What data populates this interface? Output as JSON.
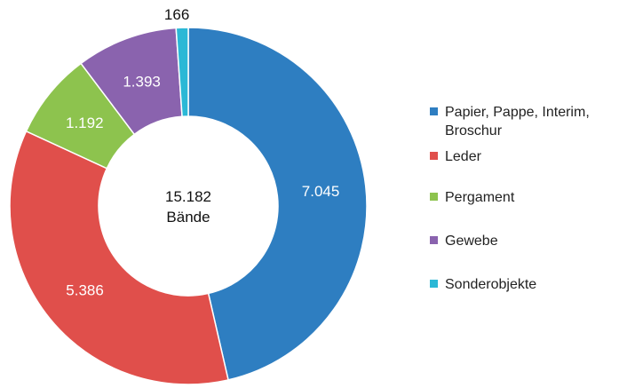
{
  "chart_data": {
    "type": "pie",
    "variant": "donut",
    "title": "",
    "center_label": {
      "line1": "15.182",
      "line2": "Bände"
    },
    "slices": [
      {
        "name": "Papier, Pappe, Interim, Broschur",
        "value": 7045,
        "label": "7.045",
        "color": "#2E7EC1"
      },
      {
        "name": "Leder",
        "value": 5386,
        "label": "5.386",
        "color": "#E04F4B"
      },
      {
        "name": "Pergament",
        "value": 1192,
        "label": "1.192",
        "color": "#8DC34E"
      },
      {
        "name": "Gewebe",
        "value": 1393,
        "label": "1.393",
        "color": "#8A63AE"
      },
      {
        "name": "Sonderobjekte",
        "value": 166,
        "label": "166",
        "color": "#2BB8D6"
      }
    ],
    "legend_position": "right",
    "start_angle_deg": 0,
    "direction": "clockwise"
  }
}
